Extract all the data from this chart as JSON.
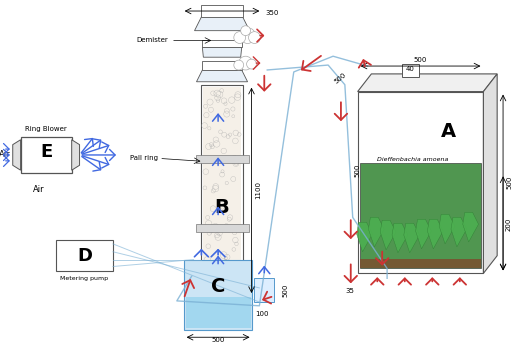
{
  "bg_color": "#ffffff",
  "arrow_blue": "#4169e1",
  "arrow_red": "#cc3333",
  "col_line": "#7ab0d4",
  "label_A": "A",
  "label_B": "B",
  "label_C": "C",
  "label_D": "D",
  "label_E": "E",
  "text_demister": "Demister",
  "text_pallring": "Pall ring",
  "text_ringblower": "Ring Blower",
  "text_air": "Air",
  "text_air2": "Air",
  "text_meteringpump": "Metering pump",
  "text_dieffenbachia": "Dieffenbachia amoena",
  "dim_350": "350",
  "dim_1100": "1100",
  "dim_500": "500",
  "dim_500b": "500",
  "dim_500c": "500",
  "dim_500d": "500",
  "dim_200": "200",
  "dim_35": "35",
  "dim_40": "40",
  "dim_100": "100"
}
